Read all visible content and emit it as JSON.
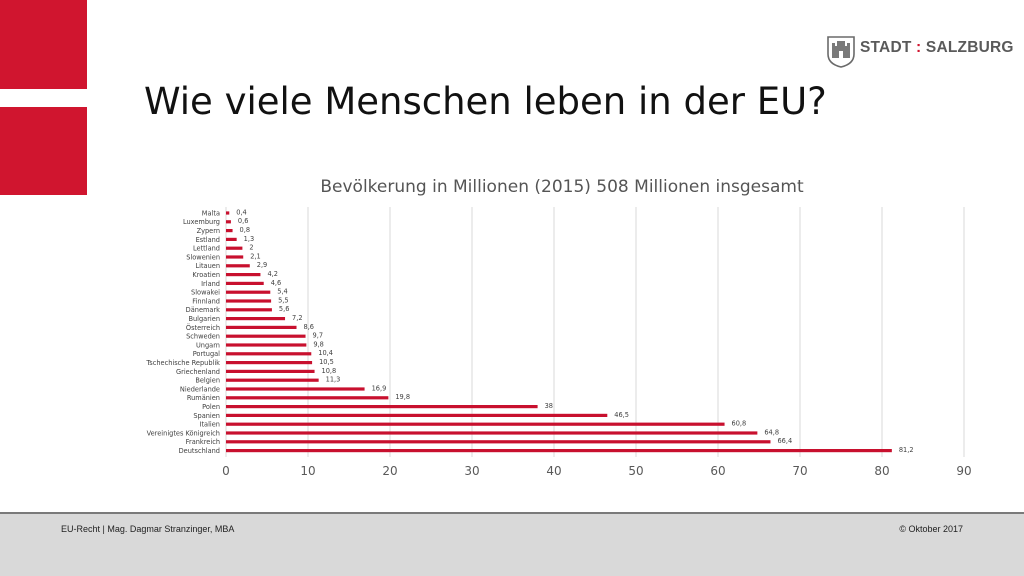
{
  "slide": {
    "title": "Wie viele Menschen leben in der EU?",
    "logo_text_left": "STADT",
    "logo_separator": ":",
    "logo_text_right": "SALZBURG",
    "accent_color": "#d0152f"
  },
  "footer": {
    "left": "EU-Recht | Mag. Dagmar Stranzinger, MBA",
    "right": "© Oktober 2017"
  },
  "chart_data": {
    "type": "bar",
    "orientation": "horizontal",
    "title": "Bevölkerung in Millionen (2015) 508 Millionen insgesamt",
    "categories": [
      "Malta",
      "Luxemburg",
      "Zypern",
      "Estland",
      "Lettland",
      "Slowenien",
      "Litauen",
      "Kroatien",
      "Irland",
      "Slowakei",
      "Finnland",
      "Dänemark",
      "Bulgarien",
      "Österreich",
      "Schweden",
      "Ungarn",
      "Portugal",
      "Tschechische Republik",
      "Griechenland",
      "Belgien",
      "Niederlande",
      "Rumänien",
      "Polen",
      "Spanien",
      "Italien",
      "Vereinigtes Königreich",
      "Frankreich",
      "Deutschland"
    ],
    "values": [
      0.4,
      0.6,
      0.8,
      1.3,
      2,
      2.1,
      2.9,
      4.2,
      4.6,
      5.4,
      5.5,
      5.6,
      7.2,
      8.6,
      9.7,
      9.8,
      10.4,
      10.5,
      10.8,
      11.3,
      16.9,
      19.8,
      38,
      46.5,
      60.8,
      64.8,
      66.4,
      81.2
    ],
    "value_labels": [
      "0,4",
      "0,6",
      "0,8",
      "1,3",
      "2",
      "2,1",
      "2,9",
      "4,2",
      "4,6",
      "5,4",
      "5,5",
      "5,6",
      "7,2",
      "8,6",
      "9,7",
      "9,8",
      "10,4",
      "10,5",
      "10,8",
      "11,3",
      "16,9",
      "19,8",
      "38",
      "46,5",
      "60,8",
      "64,8",
      "66,4",
      "81,2"
    ],
    "x_ticks": [
      "0",
      "10",
      "20",
      "30",
      "40",
      "50",
      "60",
      "70",
      "80",
      "90"
    ],
    "xlim": [
      0,
      90
    ],
    "grid": "vertical",
    "legend": "none",
    "bar_color": "#c8102e"
  }
}
